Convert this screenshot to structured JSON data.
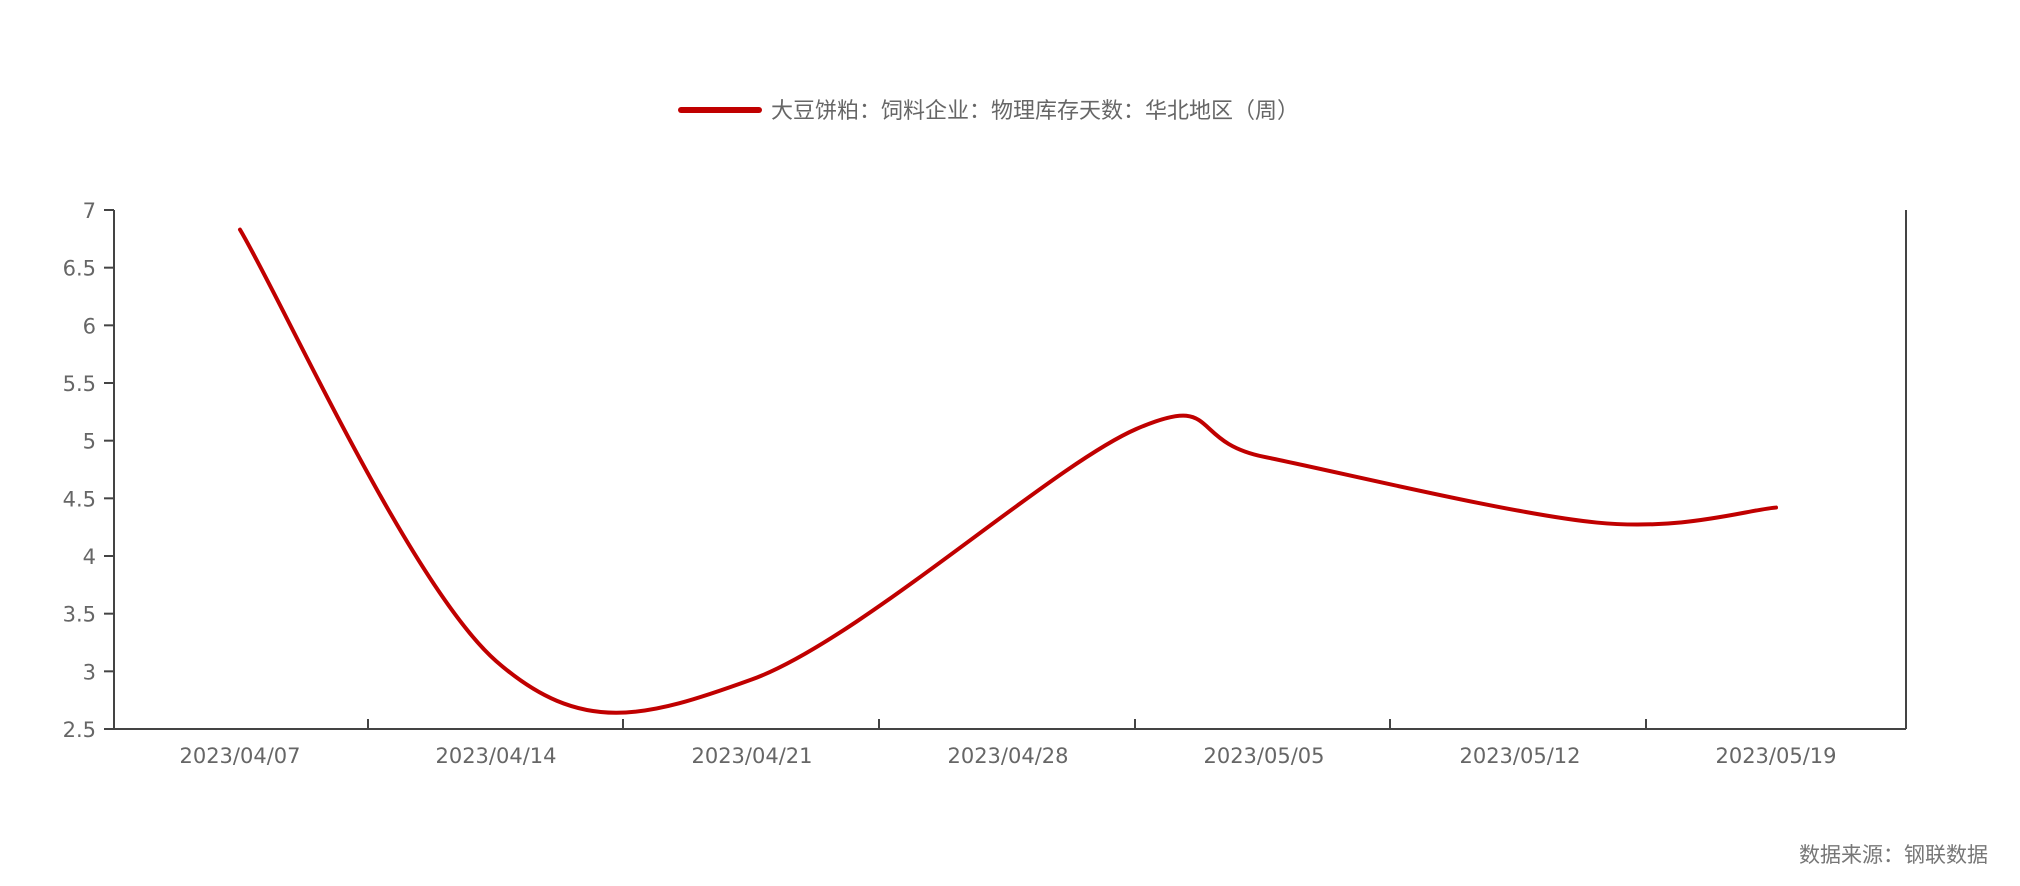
{
  "chart_data": {
    "type": "line",
    "x": [
      "2023/04/07",
      "2023/04/14",
      "2023/04/21",
      "2023/04/28",
      "2023/05/05",
      "2023/05/12",
      "2023/05/19"
    ],
    "x_tick_labels": [
      "2023/04/07",
      "2023/04/14",
      "2023/04/21",
      "2023/04/28",
      "2023/05/05",
      "2023/05/12",
      "2023/05/19"
    ],
    "series": [
      {
        "name": "大豆饼粕：饲料企业：物理库存天数：华北地区（周）",
        "color": "#C00000",
        "values": [
          6.83,
          3.09,
          2.93,
          5.1,
          4.86,
          4.29,
          4.42
        ],
        "value_x_index": [
          0,
          1,
          2,
          3.5,
          4,
          5.3,
          6
        ]
      }
    ],
    "y_ticks": [
      2.5,
      3,
      3.5,
      4,
      4.5,
      5,
      5.5,
      6,
      6.5,
      7
    ],
    "y_tick_labels": [
      "2.5",
      "3",
      "3.5",
      "4",
      "4.5",
      "5",
      "5.5",
      "6",
      "6.5",
      "7"
    ],
    "ylim": [
      2.5,
      7
    ],
    "title": "",
    "xlabel": "",
    "ylabel": "",
    "legend_position": "top-center",
    "grid": false
  },
  "source_note": "数据来源：钢联数据",
  "colors": {
    "series": "#C00000",
    "axis": "#444444",
    "text": "#666666"
  }
}
